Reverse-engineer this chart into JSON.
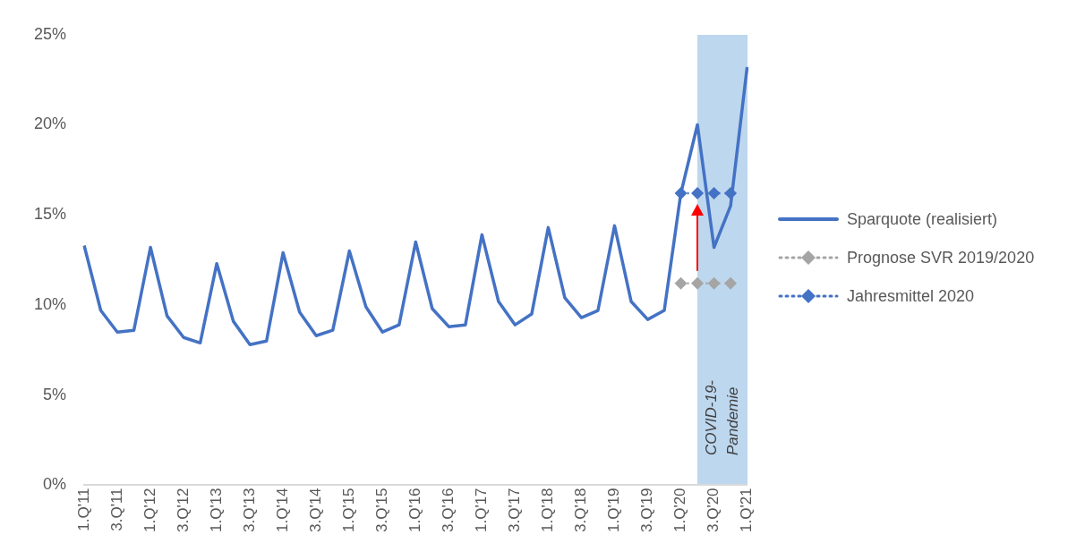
{
  "chart_data": {
    "type": "line",
    "categories": [
      "1.Q'11",
      null,
      "3.Q'11",
      null,
      "1.Q'12",
      null,
      "3.Q'12",
      null,
      "1.Q'13",
      null,
      "3.Q'13",
      null,
      "1.Q'14",
      null,
      "3.Q'14",
      null,
      "1.Q'15",
      null,
      "3.Q'15",
      null,
      "1.Q'16",
      null,
      "3.Q'16",
      null,
      "1.Q'17",
      null,
      "3.Q'17",
      null,
      "1.Q'18",
      null,
      "3.Q'18",
      null,
      "1.Q'19",
      null,
      "3.Q'19",
      null,
      "1.Q'20",
      null,
      "3.Q'20",
      null,
      "1.Q'21"
    ],
    "series": [
      {
        "name": "Sparquote (realisiert)",
        "color": "#4472c4",
        "marker": "none",
        "line_style": "solid",
        "values": [
          13.3,
          9.7,
          8.5,
          8.6,
          13.2,
          9.4,
          8.2,
          7.9,
          12.3,
          9.1,
          7.8,
          8.0,
          12.9,
          9.6,
          8.3,
          8.6,
          13.0,
          9.9,
          8.5,
          8.9,
          13.5,
          9.8,
          8.8,
          8.9,
          13.9,
          10.2,
          8.9,
          9.5,
          14.3,
          10.4,
          9.3,
          9.7,
          14.4,
          10.2,
          9.2,
          9.7,
          16.2,
          20.0,
          13.2,
          15.5,
          23.2
        ]
      },
      {
        "name": "Prognose SVR 2019/2020",
        "color": "#a5a5a5",
        "marker": "diamond",
        "line_style": "dotted",
        "values": [
          null,
          null,
          null,
          null,
          null,
          null,
          null,
          null,
          null,
          null,
          null,
          null,
          null,
          null,
          null,
          null,
          null,
          null,
          null,
          null,
          null,
          null,
          null,
          null,
          null,
          null,
          null,
          null,
          null,
          null,
          null,
          null,
          null,
          null,
          null,
          null,
          11.2,
          11.2,
          11.2,
          11.2,
          null
        ]
      },
      {
        "name": "Jahresmittel 2020",
        "color": "#4472c4",
        "marker": "diamond",
        "line_style": "dotted",
        "values": [
          null,
          null,
          null,
          null,
          null,
          null,
          null,
          null,
          null,
          null,
          null,
          null,
          null,
          null,
          null,
          null,
          null,
          null,
          null,
          null,
          null,
          null,
          null,
          null,
          null,
          null,
          null,
          null,
          null,
          null,
          null,
          null,
          null,
          null,
          null,
          null,
          16.2,
          16.2,
          16.2,
          16.2,
          null
        ]
      }
    ],
    "ylim": [
      0,
      25
    ],
    "yticks": [
      {
        "value": 0,
        "label": "0%"
      },
      {
        "value": 5,
        "label": "5%"
      },
      {
        "value": 10,
        "label": "10%"
      },
      {
        "value": 15,
        "label": "15%"
      },
      {
        "value": 20,
        "label": "20%"
      },
      {
        "value": 25,
        "label": "25%"
      }
    ],
    "grid": false,
    "legend": "right",
    "annotations": [
      "COVID-19-\nPandemie"
    ]
  }
}
